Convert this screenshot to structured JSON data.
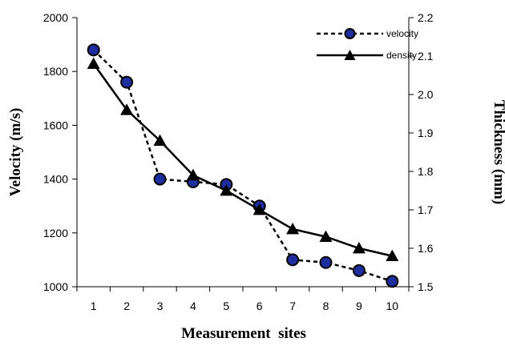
{
  "chart_data": {
    "type": "line",
    "title": "",
    "xlabel": "Measurement  sites",
    "ylabel_left": "Velocity (m/s)",
    "ylabel_right": "Thickness (mm)",
    "x": [
      1,
      2,
      3,
      4,
      5,
      6,
      7,
      8,
      9,
      10
    ],
    "y_left_range": [
      1000,
      2000
    ],
    "y_left_ticks": [
      "1000",
      "1200",
      "1400",
      "1600",
      "1800",
      "2000"
    ],
    "y_right_range": [
      1.5,
      2.2
    ],
    "y_right_ticks": [
      "1.5",
      "1.6",
      "1.7",
      "1.8",
      "1.9",
      "2.0",
      "2.1",
      "2.2"
    ],
    "x_ticks": [
      "1",
      "2",
      "3",
      "4",
      "5",
      "6",
      "7",
      "8",
      "9",
      "10"
    ],
    "grid": false,
    "legend_position": "top-right",
    "series": [
      {
        "name": "velocity",
        "axis": "left",
        "style": "dashed",
        "marker": "circle",
        "marker_color": "#1f2d9e",
        "values": [
          1880,
          1760,
          1400,
          1390,
          1380,
          1300,
          1100,
          1090,
          1060,
          1020
        ]
      },
      {
        "name": "density",
        "axis": "right",
        "style": "solid",
        "marker": "triangle",
        "marker_color": "#000000",
        "values": [
          2.08,
          1.96,
          1.88,
          1.79,
          1.75,
          1.7,
          1.65,
          1.63,
          1.6,
          1.58
        ]
      }
    ]
  }
}
